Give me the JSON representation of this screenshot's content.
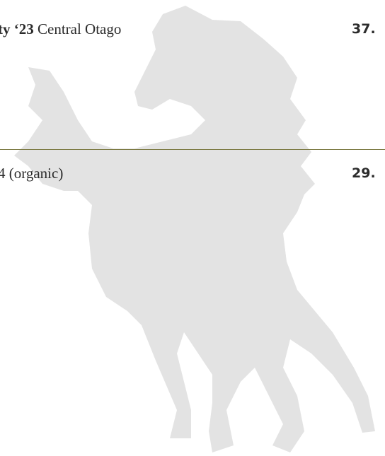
{
  "items": [
    {
      "name_bold": "ty ‘23",
      "region": "Central Otago",
      "price": "37."
    },
    {
      "name": "4 (organic)",
      "price": "29."
    }
  ]
}
